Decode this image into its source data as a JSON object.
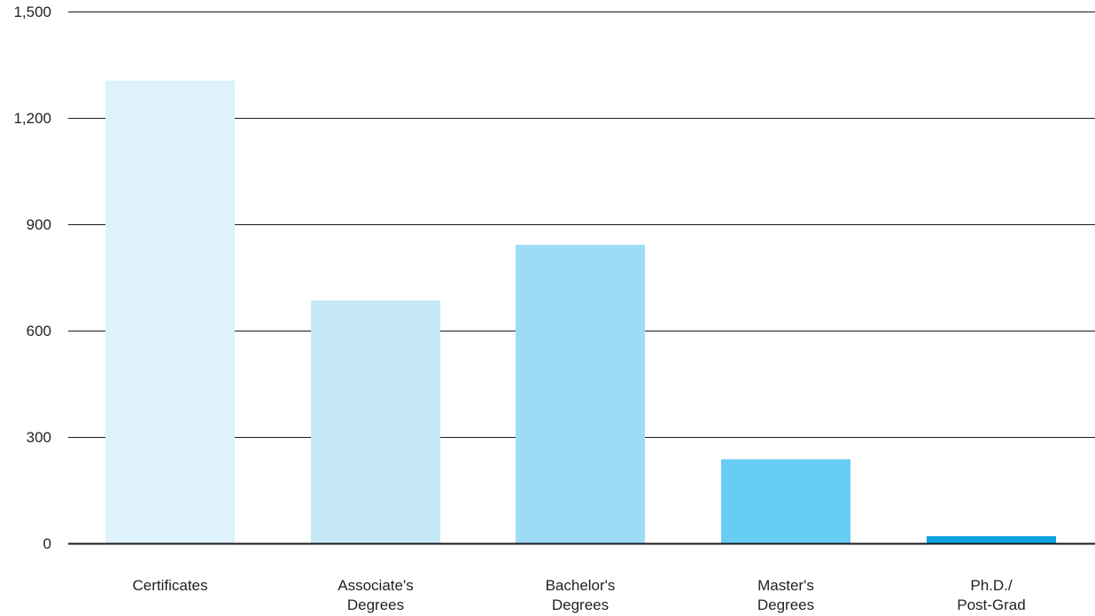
{
  "chart_data": {
    "type": "bar",
    "categories": [
      [
        "Certificates"
      ],
      [
        "Associate's",
        "Degrees"
      ],
      [
        "Bachelor's",
        "Degrees"
      ],
      [
        "Master's",
        "Degrees"
      ],
      [
        "Ph.D./",
        "Post-Grad"
      ]
    ],
    "values": [
      1305,
      685,
      842,
      237,
      20
    ],
    "colors": [
      "#ddf2fb",
      "#c6e9f8",
      "#9edcf6",
      "#68cdf4",
      "#0aa1e0"
    ],
    "ylim": [
      0,
      1500
    ],
    "yticks": [
      0,
      300,
      600,
      900,
      1200,
      1500
    ],
    "ytick_labels": [
      "0",
      "300",
      "600",
      "900",
      "1,200",
      "1,500"
    ],
    "grid": true,
    "title": "",
    "xlabel": "",
    "ylabel": ""
  }
}
